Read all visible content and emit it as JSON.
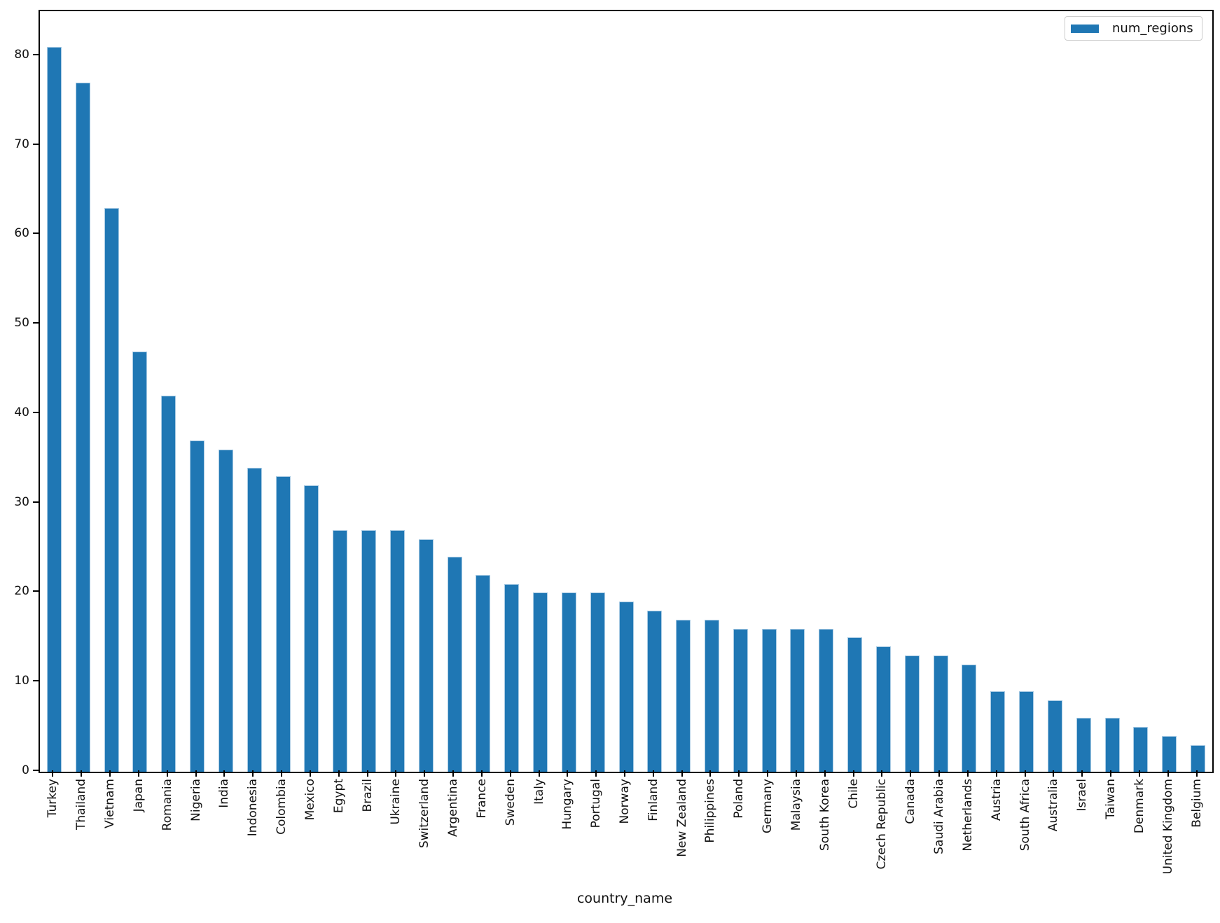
{
  "chart_data": {
    "type": "bar",
    "title": "",
    "xlabel": "country_name",
    "ylabel": "",
    "grid": false,
    "legend_position": "upper right",
    "ylim": [
      0,
      85
    ],
    "yticks": [
      0,
      10,
      20,
      30,
      40,
      50,
      60,
      70,
      80
    ],
    "categories": [
      "Turkey",
      "Thailand",
      "Vietnam",
      "Japan",
      "Romania",
      "Nigeria",
      "India",
      "Indonesia",
      "Colombia",
      "Mexico",
      "Egypt",
      "Brazil",
      "Ukraine",
      "Switzerland",
      "Argentina",
      "France",
      "Sweden",
      "Italy",
      "Hungary",
      "Portugal",
      "Norway",
      "Finland",
      "New Zealand",
      "Philippines",
      "Poland",
      "Germany",
      "Malaysia",
      "South Korea",
      "Chile",
      "Czech Republic",
      "Canada",
      "Saudi Arabia",
      "Netherlands",
      "Austria",
      "South Africa",
      "Australia",
      "Israel",
      "Taiwan",
      "Denmark",
      "United Kingdom",
      "Belgium"
    ],
    "series": [
      {
        "name": "num_regions",
        "values": [
          81,
          77,
          63,
          47,
          42,
          37,
          36,
          34,
          33,
          32,
          27,
          27,
          27,
          26,
          24,
          22,
          21,
          20,
          20,
          20,
          19,
          18,
          17,
          17,
          16,
          16,
          16,
          16,
          15,
          14,
          13,
          13,
          12,
          9,
          9,
          8,
          6,
          6,
          5,
          4,
          3
        ]
      }
    ],
    "colors": {
      "bar_fill": "#1f77b4",
      "bar_edge": "#a9cbe4",
      "axis": "#000000",
      "text": "#111111",
      "legend_border": "#cccccc",
      "background": "#ffffff"
    }
  }
}
